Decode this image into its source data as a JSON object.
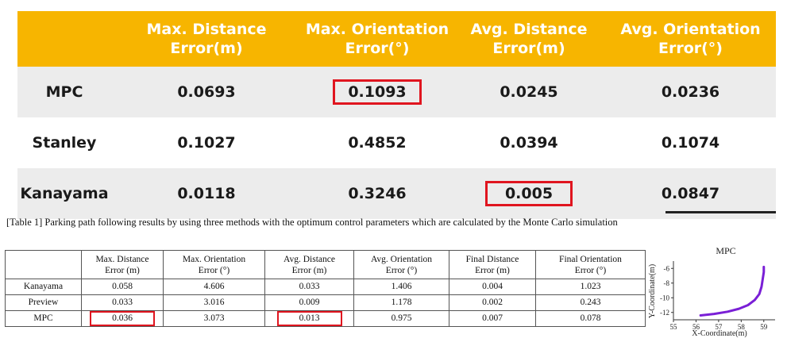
{
  "top_table": {
    "headers": [
      "",
      "Max. Distance\nError(m)",
      "Max. Orientation\nError(°)",
      "Avg. Distance\nError(m)",
      "Avg. Orientation\nError(°)"
    ],
    "rows": [
      {
        "method": "MPC",
        "values": [
          "0.0693",
          "0.1093",
          "0.0245",
          "0.0236"
        ],
        "highlight_col": 1
      },
      {
        "method": "Stanley",
        "values": [
          "0.1027",
          "0.4852",
          "0.0394",
          "0.1074"
        ],
        "highlight_col": -1
      },
      {
        "method": "Kanayama",
        "values": [
          "0.0118",
          "0.3246",
          "0.005",
          "0.0847"
        ],
        "highlight_col": 2
      }
    ],
    "colors": {
      "header_bg": "#f7b500",
      "highlight_border": "#e0151f",
      "shaded_row": "#ececec"
    }
  },
  "caption": "[Table 1] Parking path following results by using three methods with the optimum control parameters which are calculated by the Monte Carlo simulation",
  "bottom_table": {
    "headers": [
      "",
      "Max. Distance\nError (m)",
      "Max. Orientation\nError (°)",
      "Avg. Distance\nError (m)",
      "Avg. Orientation\nError (°)",
      "Final Distance\nError (m)",
      "Final Orientation\nError (°)"
    ],
    "rows": [
      {
        "method": "Kanayama",
        "values": [
          "0.058",
          "4.606",
          "0.033",
          "1.406",
          "0.004",
          "1.023"
        ]
      },
      {
        "method": "Preview",
        "values": [
          "0.033",
          "3.016",
          "0.009",
          "1.178",
          "0.002",
          "0.243"
        ]
      },
      {
        "method": "MPC",
        "values": [
          "0.036",
          "3.073",
          "0.013",
          "0.975",
          "0.007",
          "0.078"
        ],
        "highlight_cols": [
          0,
          2
        ]
      }
    ]
  },
  "chart_data": {
    "type": "line",
    "title": "MPC",
    "xlabel": "X-Coordinate(m)",
    "ylabel": "Y-Coordinate(m)",
    "xticks": [
      "55",
      "56",
      "57",
      "58",
      "59"
    ],
    "yticks": [
      "-6",
      "-8",
      "-10",
      "-12"
    ],
    "xlim": [
      55,
      59.5
    ],
    "ylim": [
      -13,
      -5
    ],
    "series": [
      {
        "color": "#7a1fd6",
        "x": [
          56.2,
          56.8,
          57.4,
          57.9,
          58.3,
          58.6,
          58.8,
          58.9,
          58.95,
          59.0,
          59.0
        ],
        "y": [
          -12.4,
          -12.2,
          -11.9,
          -11.5,
          -11.0,
          -10.3,
          -9.5,
          -8.5,
          -7.5,
          -6.5,
          -5.8
        ]
      }
    ]
  }
}
